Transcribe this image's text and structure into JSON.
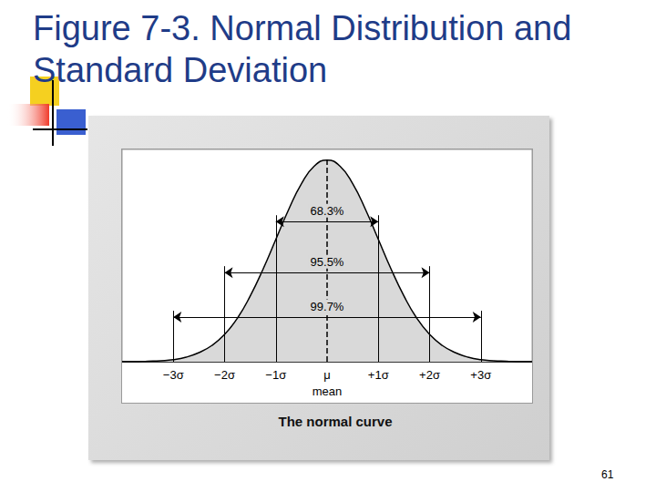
{
  "title": "Figure 7-3. Normal Distribution and Standard Deviation",
  "page_number": 61,
  "chart_data": {
    "type": "line",
    "caption": "The normal curve",
    "color": "#d9d9d9",
    "x": [
      -4,
      -3.75,
      -3.5,
      -3.25,
      -3,
      -2.75,
      -2.5,
      -2.25,
      -2,
      -1.75,
      -1.5,
      -1.25,
      -1,
      -0.75,
      -0.5,
      -0.25,
      0,
      0.25,
      0.5,
      0.75,
      1,
      1.25,
      1.5,
      1.75,
      2,
      2.25,
      2.5,
      2.75,
      3,
      3.25,
      3.5,
      3.75,
      4
    ],
    "values": [
      0,
      0,
      0.001,
      0.002,
      0.004,
      0.009,
      0.018,
      0.032,
      0.054,
      0.086,
      0.13,
      0.183,
      0.242,
      0.301,
      0.352,
      0.387,
      0.399,
      0.387,
      0.352,
      0.301,
      0.242,
      0.183,
      0.13,
      0.086,
      0.054,
      0.032,
      0.018,
      0.009,
      0.004,
      0.002,
      0.001,
      0,
      0
    ],
    "xlim": [
      -4,
      4
    ],
    "ylim": [
      0,
      0.42
    ],
    "xticks": [
      {
        "value": -3,
        "label": "−3σ"
      },
      {
        "value": -2,
        "label": "−2σ"
      },
      {
        "value": -1,
        "label": "−1σ"
      },
      {
        "value": 0,
        "label": "μ"
      },
      {
        "value": 1,
        "label": "+1σ"
      },
      {
        "value": 2,
        "label": "+2σ"
      },
      {
        "value": 3,
        "label": "+3σ"
      }
    ],
    "tick_labels": "x",
    "grid": false,
    "intervals": [
      {
        "from": -1,
        "to": 1,
        "value": 68.3,
        "label": "68.3%"
      },
      {
        "from": -2,
        "to": 2,
        "value": 95.5,
        "label": "95.5%"
      },
      {
        "from": -3,
        "to": 3,
        "value": 99.7,
        "label": "99.7%"
      }
    ],
    "annotations": [
      {
        "x": 0,
        "text": "mean"
      }
    ]
  }
}
